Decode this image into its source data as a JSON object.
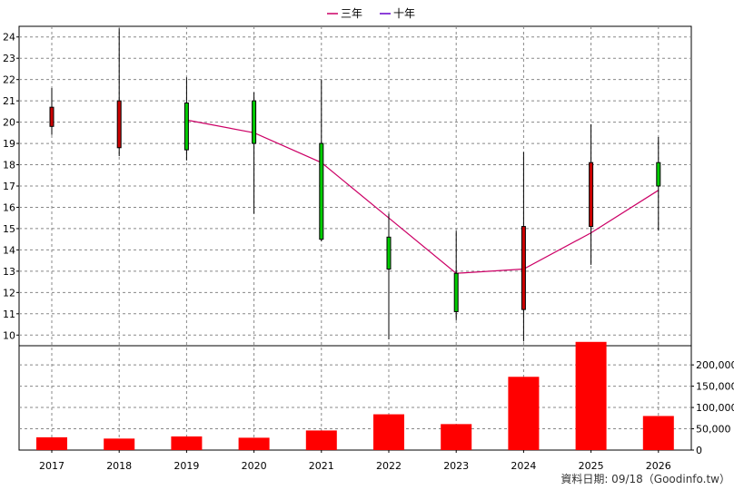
{
  "chart_data": {
    "type": "candlestick+bar",
    "title": "",
    "legend": {
      "placement": "top-center",
      "items": [
        {
          "label": "三年",
          "color": "#cc0066"
        },
        {
          "label": "十年",
          "color": "#6600cc"
        }
      ]
    },
    "categories": [
      "2017",
      "2018",
      "2019",
      "2020",
      "2021",
      "2022",
      "2023",
      "2024",
      "2025",
      "2026"
    ],
    "price": {
      "ylim": [
        9.5,
        24.5
      ],
      "yticks": [
        10,
        11,
        12,
        13,
        14,
        15,
        16,
        17,
        18,
        19,
        20,
        21,
        22,
        23,
        24
      ],
      "candles": [
        {
          "year": "2017",
          "open": 19.8,
          "close": 20.7,
          "high": 21.6,
          "low": 19.4
        },
        {
          "year": "2018",
          "open": 18.8,
          "close": 21.0,
          "high": 24.4,
          "low": 18.4
        },
        {
          "year": "2019",
          "open": 20.9,
          "close": 18.7,
          "high": 22.1,
          "low": 18.2
        },
        {
          "year": "2020",
          "open": 21.0,
          "close": 19.0,
          "high": 21.4,
          "low": 15.7
        },
        {
          "year": "2021",
          "open": 19.0,
          "close": 14.5,
          "high": 22.0,
          "low": 14.4
        },
        {
          "year": "2022",
          "open": 14.6,
          "close": 13.1,
          "high": 15.7,
          "low": 9.8
        },
        {
          "year": "2023",
          "open": 12.9,
          "close": 11.1,
          "high": 14.9,
          "low": 10.7
        },
        {
          "year": "2024",
          "open": 11.2,
          "close": 15.1,
          "high": 18.6,
          "low": 9.7
        },
        {
          "year": "2025",
          "open": 15.1,
          "close": 18.1,
          "high": 19.9,
          "low": 13.3
        },
        {
          "year": "2026",
          "open": 18.1,
          "close": 17.0,
          "high": 19.3,
          "low": 14.9
        }
      ],
      "up_color": "#cc0000",
      "down_color": "#00cc00",
      "ma_three_year": [
        {
          "year": "2019",
          "value": 20.1
        },
        {
          "year": "2020",
          "value": 19.5
        },
        {
          "year": "2021",
          "value": 18.1
        },
        {
          "year": "2022",
          "value": 15.5
        },
        {
          "year": "2023",
          "value": 12.9
        },
        {
          "year": "2024",
          "value": 13.1
        },
        {
          "year": "2025",
          "value": 14.8
        },
        {
          "year": "2026",
          "value": 16.8
        }
      ]
    },
    "volume": {
      "ylim": [
        0,
        245000
      ],
      "yticks": [
        0,
        50000,
        100000,
        150000,
        200000
      ],
      "ytick_labels": [
        "0",
        "50,000",
        "100,000",
        "150,000",
        "200,000"
      ],
      "values": [
        30000,
        27000,
        32000,
        29000,
        46000,
        84000,
        61000,
        172000,
        254000,
        80000
      ],
      "color": "#ff0000"
    },
    "footer": "資料日期: 09/18（Goodinfo.tw）"
  }
}
